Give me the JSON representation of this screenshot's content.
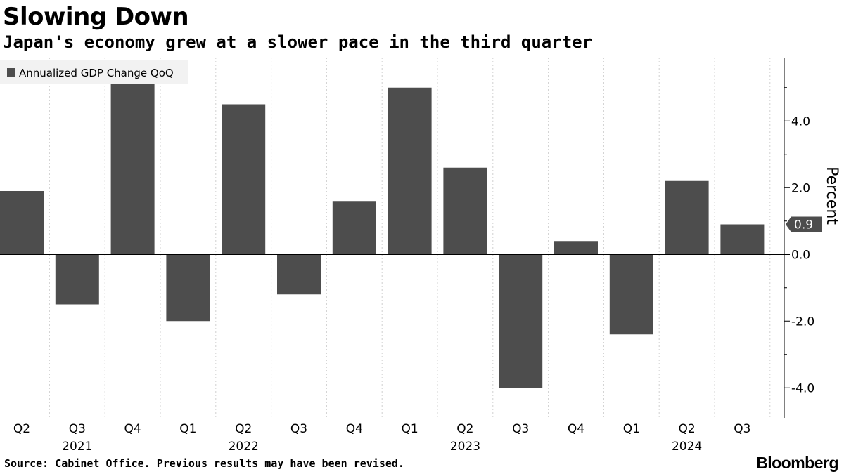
{
  "title": "Slowing Down",
  "subtitle": "Japan's economy grew at a slower pace in the third quarter",
  "source": "Source: Cabinet Office. Previous results may have been revised.",
  "logo": "Bloomberg",
  "chart_data": {
    "type": "bar",
    "categories": [
      "Q2",
      "Q3",
      "Q4",
      "Q1",
      "Q2",
      "Q3",
      "Q4",
      "Q1",
      "Q2",
      "Q3",
      "Q4",
      "Q1",
      "Q2",
      "Q3"
    ],
    "year_labels": [
      {
        "label": "2021",
        "category_index": 1
      },
      {
        "label": "2022",
        "category_index": 4
      },
      {
        "label": "2023",
        "category_index": 8
      },
      {
        "label": "2024",
        "category_index": 12
      }
    ],
    "series": [
      {
        "name": "Annualized GDP Change QoQ",
        "values": [
          1.9,
          -1.5,
          5.1,
          -2.0,
          4.5,
          -1.2,
          1.6,
          5.0,
          2.6,
          -4.0,
          0.4,
          -2.4,
          2.2,
          0.9
        ]
      }
    ],
    "ylabel": "Percent",
    "ylim": [
      -4.9,
      5.9
    ],
    "yticks": [
      4.0,
      2.0,
      0.0,
      -2.0,
      -4.0
    ],
    "ytick_labels": [
      "4.0",
      "2.0",
      "0.0",
      "-2.0",
      "-4.0"
    ],
    "last_value_label": "0.9",
    "axis_position": "right",
    "legend_position": "top-left",
    "grid": "vertical dotted",
    "colors": {
      "bar": "#4d4d4d",
      "legend_bg": "#f2f2f2",
      "grid": "#d0d0d0",
      "axis": "#000000"
    }
  }
}
